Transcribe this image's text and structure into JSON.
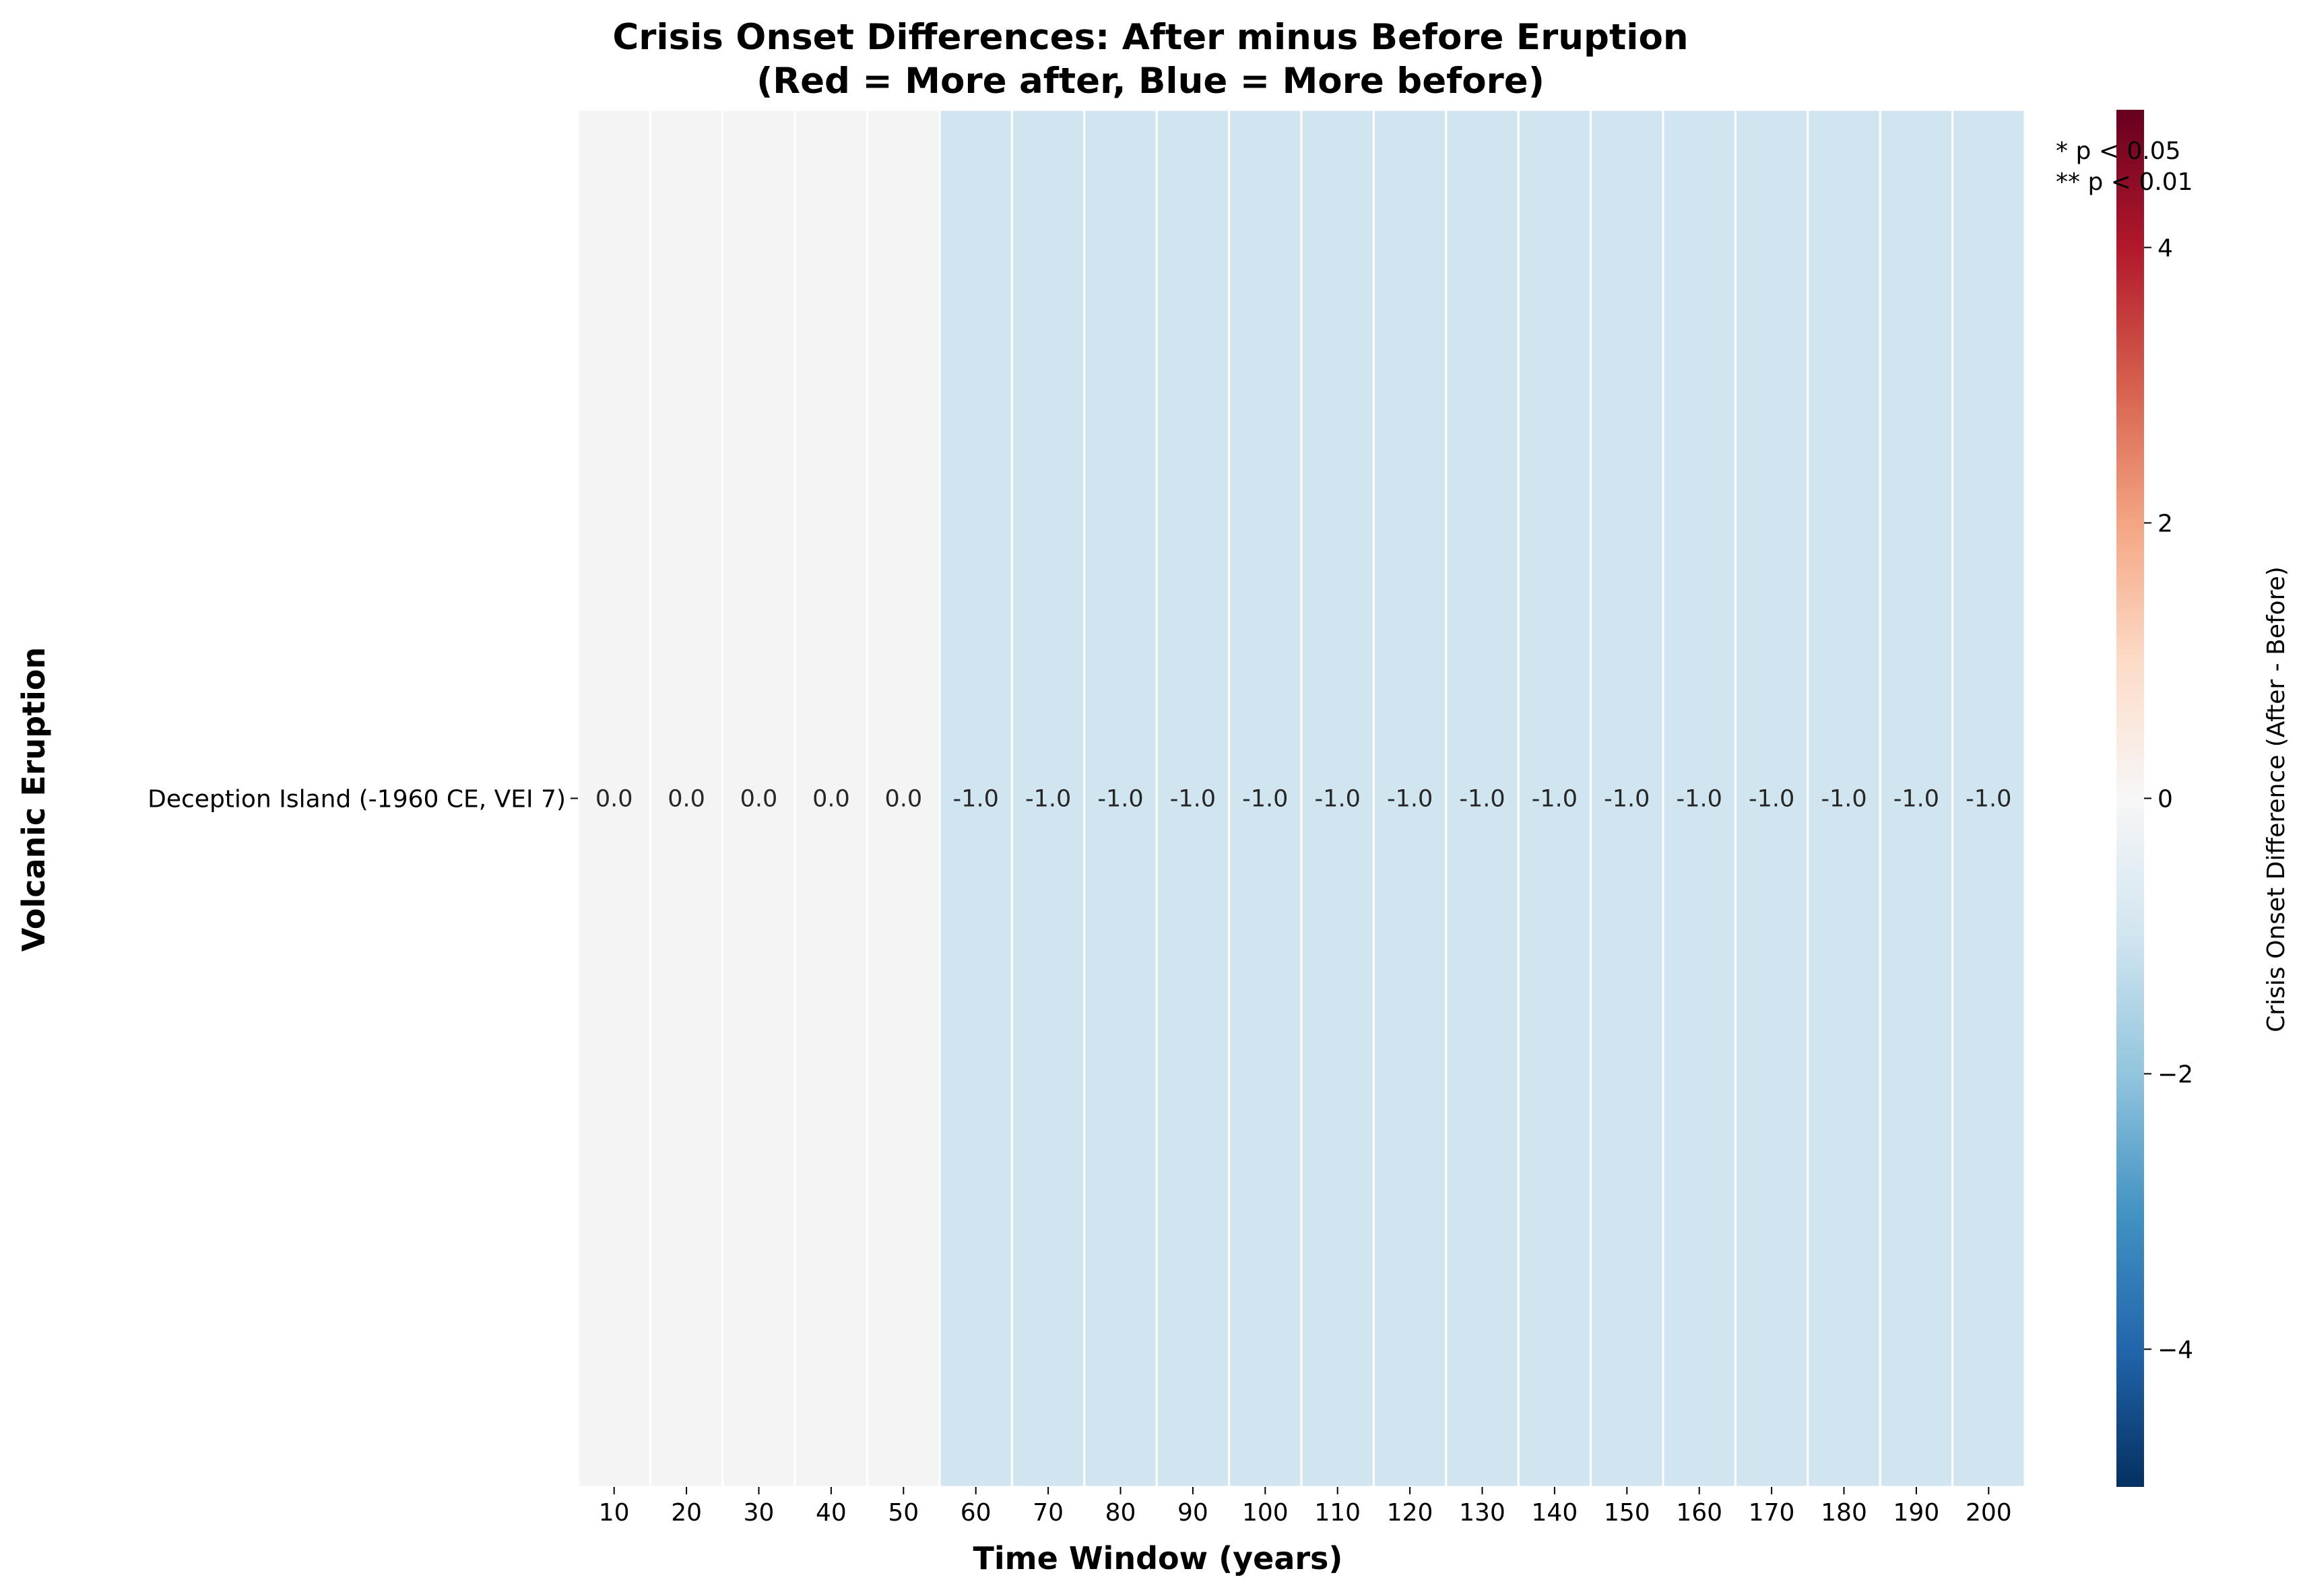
{
  "chart_data": {
    "type": "heatmap",
    "title_lines": [
      "Crisis Onset Differences: After minus Before Eruption",
      "(Red = More after, Blue = More before)"
    ],
    "xlabel": "Time Window (years)",
    "ylabel": "Volcanic Eruption",
    "x": [
      "10",
      "20",
      "30",
      "40",
      "50",
      "60",
      "70",
      "80",
      "90",
      "100",
      "110",
      "120",
      "130",
      "140",
      "150",
      "160",
      "170",
      "180",
      "190",
      "200"
    ],
    "y": [
      "Deception Island  (-1960 CE, VEI 7)"
    ],
    "values": [
      [
        0.0,
        0.0,
        0.0,
        0.0,
        0.0,
        -1.0,
        -1.0,
        -1.0,
        -1.0,
        -1.0,
        -1.0,
        -1.0,
        -1.0,
        -1.0,
        -1.0,
        -1.0,
        -1.0,
        -1.0,
        -1.0,
        -1.0
      ]
    ],
    "cell_labels": [
      [
        "0.0",
        "0.0",
        "0.0",
        "0.0",
        "0.0",
        "-1.0",
        "-1.0",
        "-1.0",
        "-1.0",
        "-1.0",
        "-1.0",
        "-1.0",
        "-1.0",
        "-1.0",
        "-1.0",
        "-1.0",
        "-1.0",
        "-1.0",
        "-1.0",
        "-1.0"
      ]
    ],
    "colormap": "RdBu_r",
    "vmin": -5,
    "vmax": 5,
    "colorbar": {
      "label": "Crisis Onset Difference (After - Before)",
      "ticks": [
        -4,
        -2,
        0,
        2,
        4
      ],
      "tick_labels": [
        "−4",
        "−2",
        "0",
        "2",
        "4"
      ]
    },
    "significance_note": [
      "* p < 0.05",
      "** p < 0.01"
    ],
    "colors": {
      "zero": "#f4f4f4",
      "minus_one": "#d1e5f0",
      "grid_line": "#ffffff"
    },
    "colormap_stops": [
      "#053061",
      "#2166ac",
      "#4393c3",
      "#92c5de",
      "#d1e5f0",
      "#f7f7f7",
      "#fddbc7",
      "#f4a582",
      "#d6604d",
      "#b2182b",
      "#67001f"
    ]
  }
}
